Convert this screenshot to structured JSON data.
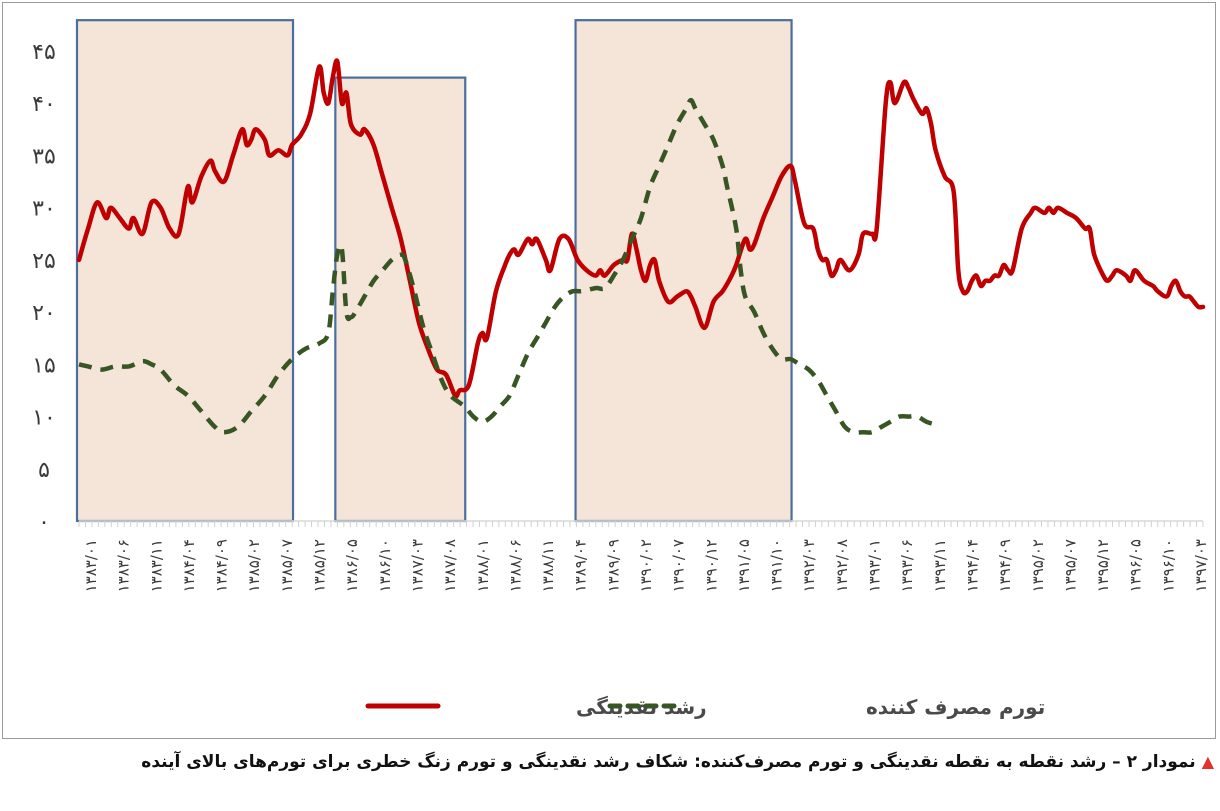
{
  "chart_data": {
    "type": "line",
    "y_ticks": [
      "۰",
      "۵",
      "۱۰",
      "۱۵",
      "۲۰",
      "۲۵",
      "۳۰",
      "۳۵",
      "۴۰",
      "۴۵"
    ],
    "ylim": [
      0,
      45
    ],
    "x_labels": [
      "۱۳۸۳/۰۱",
      "۱۳۸۳/۰۶",
      "۱۳۸۳/۱۱",
      "۱۳۸۴/۰۴",
      "۱۳۸۴/۰۹",
      "۱۳۸۵/۰۲",
      "۱۳۸۵/۰۷",
      "۱۳۸۵/۱۲",
      "۱۳۸۶/۰۵",
      "۱۳۸۶/۱۰",
      "۱۳۸۷/۰۳",
      "۱۳۸۷/۰۸",
      "۱۳۸۸/۰۱",
      "۱۳۸۸/۰۶",
      "۱۳۸۸/۱۱",
      "۱۳۸۹/۰۴",
      "۱۳۸۹/۰۹",
      "۱۳۹۰/۰۲",
      "۱۳۹۰/۰۷",
      "۱۳۹۰/۱۲",
      "۱۳۹۱/۰۵",
      "۱۳۹۱/۱۰",
      "۱۳۹۲/۰۳",
      "۱۳۹۲/۰۸",
      "۱۳۹۳/۰۱",
      "۱۳۹۳/۰۶",
      "۱۳۹۳/۱۱",
      "۱۳۹۴/۰۴",
      "۱۳۹۴/۰۹",
      "۱۳۹۵/۰۲",
      "۱۳۹۵/۰۷",
      "۱۳۹۵/۱۲",
      "۱۳۹۶/۰۵",
      "۱۳۹۶/۱۰",
      "۱۳۹۷/۰۳"
    ],
    "x_count": 175,
    "shaded_ranges": [
      {
        "from": 0,
        "to": 53,
        "ymax": 48
      },
      {
        "from": 65,
        "to": 94,
        "ymax": 42.5
      },
      {
        "from": 120,
        "to": 174,
        "ymax": 48
      }
    ],
    "series": [
      {
        "name": "رشد نقدینگی",
        "color": "#c00000",
        "style": "solid",
        "points": [
          [
            0,
            25
          ],
          [
            2,
            28
          ],
          [
            4,
            30.5
          ],
          [
            6,
            29
          ],
          [
            7,
            30
          ],
          [
            9,
            29
          ],
          [
            11,
            28
          ],
          [
            12,
            29
          ],
          [
            14,
            27.5
          ],
          [
            16,
            30.5
          ],
          [
            18,
            30
          ],
          [
            20,
            28
          ],
          [
            22,
            27.5
          ],
          [
            24,
            32
          ],
          [
            25,
            30.5
          ],
          [
            27,
            33
          ],
          [
            29,
            34.5
          ],
          [
            30,
            33.5
          ],
          [
            32,
            32.5
          ],
          [
            34,
            35
          ],
          [
            36,
            37.5
          ],
          [
            37,
            36
          ],
          [
            38,
            36.5
          ],
          [
            39,
            37.5
          ],
          [
            41,
            36.5
          ],
          [
            42,
            35
          ],
          [
            44,
            35.5
          ],
          [
            46,
            35
          ],
          [
            47,
            36
          ],
          [
            49,
            37
          ],
          [
            51,
            39
          ],
          [
            53,
            43.5
          ],
          [
            54,
            41
          ],
          [
            55,
            40
          ],
          [
            56,
            42.5
          ],
          [
            57,
            44
          ],
          [
            58,
            40
          ],
          [
            59,
            41
          ],
          [
            60,
            38
          ],
          [
            62,
            37
          ],
          [
            63,
            37.5
          ],
          [
            65,
            36
          ],
          [
            67,
            33
          ],
          [
            69,
            30
          ],
          [
            71,
            27
          ],
          [
            73,
            23
          ],
          [
            75,
            19
          ],
          [
            77,
            16.5
          ],
          [
            79,
            14.5
          ],
          [
            81,
            14
          ],
          [
            83,
            12
          ],
          [
            84,
            12.5
          ],
          [
            86,
            13
          ],
          [
            88,
            17
          ],
          [
            89,
            18
          ],
          [
            90,
            17.5
          ],
          [
            92,
            22
          ],
          [
            94,
            24.5
          ],
          [
            95,
            25.5
          ],
          [
            96,
            26
          ],
          [
            97,
            25.5
          ],
          [
            99,
            27
          ],
          [
            100,
            26.5
          ],
          [
            101,
            27
          ],
          [
            103,
            25
          ],
          [
            104,
            24
          ],
          [
            106,
            27
          ],
          [
            108,
            27
          ],
          [
            110,
            25
          ],
          [
            112,
            24
          ],
          [
            114,
            23.5
          ],
          [
            115,
            24
          ],
          [
            116,
            23.5
          ],
          [
            118,
            24.5
          ],
          [
            120,
            25
          ],
          [
            121,
            25
          ],
          [
            122,
            27.5
          ],
          [
            123,
            26
          ],
          [
            124,
            24
          ],
          [
            125,
            23
          ],
          [
            126,
            24.5
          ],
          [
            127,
            25
          ],
          [
            128,
            23
          ],
          [
            130,
            21
          ],
          [
            132,
            21.5
          ],
          [
            134,
            22
          ],
          [
            135,
            21.5
          ],
          [
            136,
            20.5
          ],
          [
            138,
            18.5
          ],
          [
            140,
            21
          ],
          [
            142,
            22
          ],
          [
            144,
            23.5
          ],
          [
            145,
            24.5
          ],
          [
            147,
            27
          ],
          [
            148,
            26
          ],
          [
            149,
            26.5
          ],
          [
            151,
            29
          ],
          [
            153,
            31
          ],
          [
            155,
            33
          ],
          [
            157,
            34
          ],
          [
            158,
            32.5
          ],
          [
            160,
            28.5
          ],
          [
            162,
            28
          ],
          [
            163,
            26
          ],
          [
            164,
            25
          ],
          [
            165,
            25
          ],
          [
            166,
            23.5
          ],
          [
            167,
            24
          ],
          [
            168,
            25
          ],
          [
            170,
            24
          ],
          [
            172,
            25.5
          ],
          [
            173,
            27.5
          ],
          [
            175,
            27.5
          ],
          [
            176,
            28
          ],
          [
            178,
            40
          ],
          [
            179,
            42
          ],
          [
            180,
            40
          ],
          [
            182,
            42
          ],
          [
            183,
            41.5
          ],
          [
            184,
            40.5
          ],
          [
            186,
            39
          ],
          [
            187,
            39.5
          ],
          [
            188,
            38
          ],
          [
            189,
            35.5
          ],
          [
            191,
            33
          ],
          [
            193,
            31.5
          ],
          [
            194,
            24
          ],
          [
            195,
            22
          ],
          [
            196,
            22
          ],
          [
            197,
            23
          ],
          [
            198,
            23.5
          ],
          [
            199,
            22.5
          ],
          [
            200,
            23
          ],
          [
            201,
            23
          ],
          [
            202,
            23.5
          ],
          [
            203,
            23.5
          ],
          [
            204,
            24.5
          ],
          [
            205,
            24
          ],
          [
            206,
            24
          ],
          [
            208,
            28
          ],
          [
            210,
            29.5
          ],
          [
            211,
            30
          ],
          [
            213,
            29.5
          ],
          [
            214,
            30
          ],
          [
            215,
            29.5
          ],
          [
            216,
            30
          ],
          [
            218,
            29.5
          ],
          [
            220,
            29
          ],
          [
            222,
            28
          ],
          [
            223,
            28
          ],
          [
            224,
            25.5
          ],
          [
            226,
            23.5
          ],
          [
            227,
            23
          ],
          [
            228,
            23.5
          ],
          [
            229,
            24
          ],
          [
            231,
            23.5
          ],
          [
            232,
            23
          ],
          [
            233,
            24
          ],
          [
            235,
            23
          ],
          [
            237,
            22.5
          ],
          [
            238,
            22
          ],
          [
            240,
            21.5
          ],
          [
            241,
            22.5
          ],
          [
            242,
            23
          ],
          [
            243,
            22
          ],
          [
            244,
            21.5
          ],
          [
            245,
            21.5
          ],
          [
            246,
            21
          ],
          [
            247,
            20.5
          ],
          [
            248,
            20.5
          ]
        ]
      },
      {
        "name": "تورم مصرف کننده",
        "color": "#375623",
        "style": "dashed",
        "points": [
          [
            0,
            15
          ],
          [
            2,
            14.8
          ],
          [
            5,
            14.5
          ],
          [
            8,
            14.8
          ],
          [
            11,
            14.8
          ],
          [
            14,
            15.3
          ],
          [
            16,
            15
          ],
          [
            18,
            14.5
          ],
          [
            21,
            13
          ],
          [
            24,
            12
          ],
          [
            27,
            10.5
          ],
          [
            30,
            9
          ],
          [
            32,
            8.5
          ],
          [
            35,
            9
          ],
          [
            38,
            10.5
          ],
          [
            41,
            12
          ],
          [
            44,
            14
          ],
          [
            47,
            15.5
          ],
          [
            50,
            16.5
          ],
          [
            53,
            17
          ],
          [
            55,
            18
          ],
          [
            56,
            22
          ],
          [
            57,
            25.5
          ],
          [
            58,
            26
          ],
          [
            59,
            20
          ],
          [
            60,
            19.5
          ],
          [
            61,
            20
          ],
          [
            63,
            21.5
          ],
          [
            65,
            23
          ],
          [
            67,
            24
          ],
          [
            69,
            25
          ],
          [
            71,
            25.5
          ],
          [
            72,
            25
          ],
          [
            74,
            22
          ],
          [
            76,
            18.5
          ],
          [
            78,
            16
          ],
          [
            80,
            13.5
          ],
          [
            82,
            12
          ],
          [
            85,
            11
          ],
          [
            87,
            10
          ],
          [
            89,
            9.5
          ],
          [
            91,
            10
          ],
          [
            93,
            11
          ],
          [
            95,
            12
          ],
          [
            97,
            14
          ],
          [
            99,
            16
          ],
          [
            101,
            17.5
          ],
          [
            103,
            19
          ],
          [
            105,
            20.5
          ],
          [
            107,
            21.5
          ],
          [
            109,
            22
          ],
          [
            111,
            22
          ],
          [
            114,
            22.3
          ],
          [
            116,
            22.3
          ],
          [
            118,
            23.5
          ],
          [
            120,
            25
          ],
          [
            122,
            27
          ],
          [
            124,
            29
          ],
          [
            126,
            32
          ],
          [
            128,
            34
          ],
          [
            130,
            36
          ],
          [
            132,
            38
          ],
          [
            134,
            39.5
          ],
          [
            135,
            40.3
          ],
          [
            136,
            39.5
          ],
          [
            138,
            38
          ],
          [
            140,
            36.5
          ],
          [
            142,
            34
          ],
          [
            143,
            32
          ],
          [
            145,
            28
          ],
          [
            146,
            24
          ],
          [
            147,
            21.5
          ],
          [
            149,
            20
          ],
          [
            151,
            18
          ],
          [
            153,
            16.5
          ],
          [
            155,
            15.5
          ],
          [
            157,
            15.5
          ],
          [
            159,
            15
          ],
          [
            161,
            14.5
          ],
          [
            163,
            13.5
          ],
          [
            165,
            12
          ],
          [
            167,
            10.5
          ],
          [
            169,
            9
          ],
          [
            171,
            8.5
          ],
          [
            173,
            8.5
          ],
          [
            175,
            8.5
          ],
          [
            177,
            9
          ],
          [
            179,
            9.5
          ],
          [
            181,
            10
          ],
          [
            183,
            10
          ],
          [
            185,
            10
          ],
          [
            187,
            9.5
          ],
          [
            189,
            9.3
          ],
          [
            190,
            9.5
          ]
        ]
      }
    ],
    "legend": {
      "position": "bottom-center"
    }
  },
  "caption": {
    "marker": "▲",
    "text": "نمودار ۲ – رشد نقطه به نقطه نقدینگی و تورم مصرف‌کننده: شکاف رشد نقدینگی و تورم زنگ خطری برای تورم‌های بالای آینده"
  }
}
